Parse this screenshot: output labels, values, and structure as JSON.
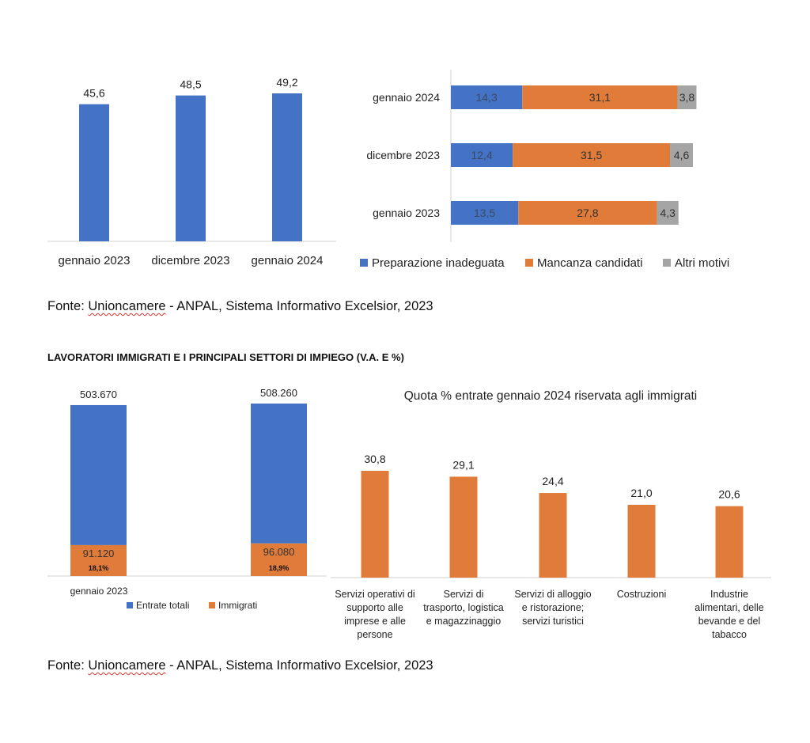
{
  "colors": {
    "blue": "#4472C4",
    "orange": "#E07B39",
    "gray": "#A5A5A5"
  },
  "source1": {
    "org": "Unioncamere",
    "rest": " - ANPAL, Sistema Informativo Excelsior, 2023",
    "prefix": "Fonte: "
  },
  "section_title": "LAVORATORI IMMIGRATI E I PRINCIPALI SETTORI DI IMPIEGO (V.A. E %)",
  "source2": {
    "org": "Unioncamere",
    "rest": " - ANPAL, Sistema Informativo Excelsior, 2023",
    "prefix": "Fonte: "
  },
  "chart_data": [
    {
      "type": "bar",
      "categories": [
        "gennaio 2023",
        "dicembre 2023",
        "gennaio 2024"
      ],
      "values": [
        45.6,
        48.5,
        49.2
      ],
      "value_labels": [
        "45,6",
        "48,5",
        "49,2"
      ],
      "ylim": [
        0,
        50
      ],
      "grid": false
    },
    {
      "type": "bar",
      "orientation": "horizontal",
      "stacked": true,
      "categories": [
        "gennaio 2024",
        "dicembre 2023",
        "gennaio 2023"
      ],
      "series": [
        {
          "name": "Preparazione inadeguata",
          "values": [
            14.3,
            12.4,
            13.5
          ],
          "labels": [
            "14,3",
            "12,4",
            "13,5"
          ]
        },
        {
          "name": "Mancanza candidati",
          "values": [
            31.1,
            31.5,
            27.8
          ],
          "labels": [
            "31,1",
            "31,5",
            "27,8"
          ]
        },
        {
          "name": "Altri motivi",
          "values": [
            3.8,
            4.6,
            4.3
          ],
          "labels": [
            "3,8",
            "4,6",
            "4,3"
          ]
        }
      ],
      "legend": "bottom"
    },
    {
      "type": "bar",
      "stacked": true,
      "categories": [
        "gennaio 2023",
        ""
      ],
      "series": [
        {
          "name": "Entrate totali",
          "values": [
            503670,
            508260
          ],
          "labels": [
            "503.670",
            "508.260"
          ]
        },
        {
          "name": "Immigrati",
          "values": [
            91120,
            96080
          ],
          "labels": [
            "91.120",
            "96.080"
          ],
          "shares": [
            "18,1%",
            "18,9%"
          ]
        }
      ],
      "legend": "bottom"
    },
    {
      "type": "bar",
      "title": "Quota % entrate gennaio 2024 riservata agli immigrati",
      "categories": [
        [
          "Servizi operativi di",
          "supporto alle",
          "imprese e alle",
          "persone"
        ],
        [
          "Servizi di",
          "trasporto, logistica",
          "e magazzinaggio"
        ],
        [
          "Servizi di alloggio",
          "e ristorazione;",
          "servizi turistici"
        ],
        [
          "Costruzioni"
        ],
        [
          "Industrie",
          "alimentari, delle",
          "bevande e del",
          "tabacco"
        ]
      ],
      "values": [
        30.8,
        29.1,
        24.4,
        21.0,
        20.6
      ],
      "value_labels": [
        "30,8",
        "29,1",
        "24,4",
        "21,0",
        "20,6"
      ],
      "ylim": [
        0,
        35
      ],
      "grid": false
    }
  ]
}
